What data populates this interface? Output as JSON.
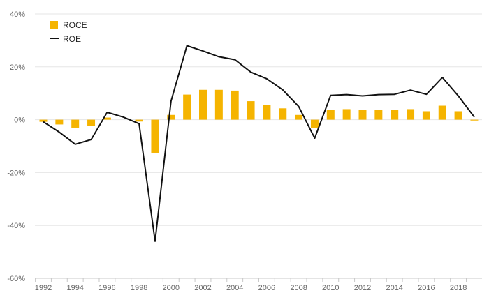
{
  "chart_data": {
    "type": "bar",
    "title": "",
    "xlabel": "",
    "ylabel": "",
    "ylim": [
      -60,
      40
    ],
    "y_ticks": [
      "40%",
      "20%",
      "0%",
      "-20%",
      "-40%",
      "-60%"
    ],
    "y_tick_values": [
      40,
      20,
      0,
      -20,
      -40,
      -60
    ],
    "x": [
      1992,
      1993,
      1994,
      1995,
      1996,
      1997,
      1998,
      1999,
      2000,
      2001,
      2002,
      2003,
      2004,
      2005,
      2006,
      2007,
      2008,
      2009,
      2010,
      2011,
      2012,
      2013,
      2014,
      2015,
      2016,
      2017,
      2018,
      2019
    ],
    "x_tick_labels": [
      "1992",
      "1994",
      "1996",
      "1998",
      "2000",
      "2002",
      "2004",
      "2006",
      "2008",
      "2010",
      "2012",
      "2014",
      "2016",
      "2018"
    ],
    "grid": true,
    "legend_position": "top-left",
    "series": [
      {
        "name": "ROCE",
        "kind": "bar",
        "color": "#f5b400",
        "values": [
          -0.8,
          -1.8,
          -3.0,
          -2.3,
          0.8,
          0.0,
          -0.7,
          -12.5,
          1.8,
          9.5,
          11.3,
          11.3,
          11.0,
          7.0,
          5.5,
          4.3,
          1.8,
          -3.0,
          3.7,
          4.0,
          3.7,
          3.7,
          3.7,
          4.0,
          3.2,
          5.3,
          3.2,
          -0.3
        ]
      },
      {
        "name": "ROE",
        "kind": "line",
        "color": "#111111",
        "values": [
          -0.8,
          -4.7,
          -9.3,
          -7.5,
          2.8,
          1.0,
          -1.5,
          -46.0,
          7.0,
          28.0,
          26.0,
          23.8,
          22.7,
          18.0,
          15.5,
          11.3,
          5.0,
          -7.0,
          9.2,
          9.5,
          9.0,
          9.5,
          9.6,
          11.2,
          9.6,
          16.0,
          9.0,
          1.0
        ]
      }
    ]
  }
}
